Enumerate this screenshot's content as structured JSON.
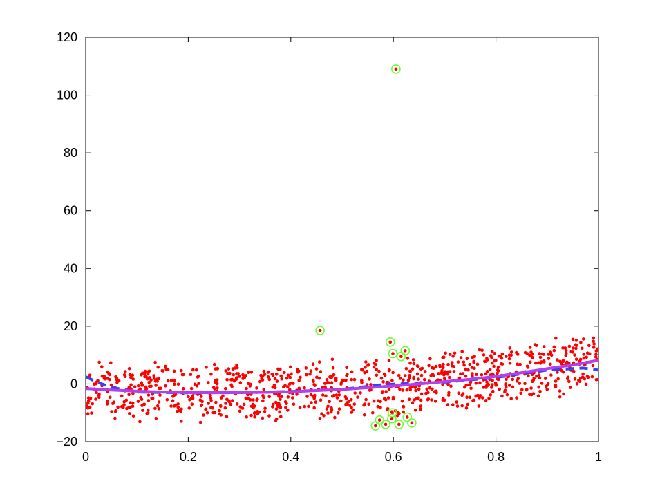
{
  "chart_data": {
    "type": "scatter",
    "title": "",
    "xlabel": "",
    "ylabel": "",
    "xlim": [
      0,
      1
    ],
    "ylim": [
      -20,
      120
    ],
    "grid": false,
    "x_ticks": [
      0,
      0.2,
      0.4,
      0.6,
      0.8,
      1
    ],
    "x_tick_labels": [
      "0",
      "0.2",
      "0.4",
      "0.6",
      "0.8",
      "1"
    ],
    "y_ticks": [
      -20,
      0,
      20,
      40,
      60,
      80,
      100,
      120
    ],
    "y_tick_labels": [
      "−20",
      "0",
      "20",
      "40",
      "60",
      "80",
      "100",
      "120"
    ],
    "colors": {
      "points": "#ff0000",
      "outlier_ring": "#66ff33",
      "fit_solid": "#b040f0",
      "fit_dashed": "#3344ee"
    },
    "scatter_cloud": {
      "count": 1000,
      "x_range": [
        0,
        1
      ],
      "trend_coefficients": [
        -1.6,
        -11.0,
        20.8
      ],
      "spread": 11
    },
    "outliers": [
      {
        "x": 0.605,
        "y": 109
      },
      {
        "x": 0.457,
        "y": 18.5
      },
      {
        "x": 0.594,
        "y": 14.5
      },
      {
        "x": 0.599,
        "y": 10.5
      },
      {
        "x": 0.623,
        "y": 11.5
      },
      {
        "x": 0.615,
        "y": 9.5
      },
      {
        "x": 0.565,
        "y": -14.5
      },
      {
        "x": 0.573,
        "y": -12.5
      },
      {
        "x": 0.585,
        "y": -14
      },
      {
        "x": 0.598,
        "y": -10
      },
      {
        "x": 0.597,
        "y": -12
      },
      {
        "x": 0.611,
        "y": -14
      },
      {
        "x": 0.627,
        "y": -11.5
      },
      {
        "x": 0.636,
        "y": -13.5
      }
    ],
    "series": [
      {
        "style": "solid",
        "x": [
          0,
          0.05,
          0.1,
          0.15,
          0.2,
          0.25,
          0.3,
          0.35,
          0.4,
          0.45,
          0.5,
          0.55,
          0.6,
          0.65,
          0.7,
          0.75,
          0.8,
          0.85,
          0.9,
          0.95,
          1
        ],
        "y": [
          -1.6,
          -2.1,
          -2.5,
          -2.8,
          -3.0,
          -3.0,
          -3.0,
          -2.9,
          -2.7,
          -2.3,
          -1.9,
          -1.3,
          -0.7,
          0.0,
          0.8,
          1.6,
          2.6,
          3.9,
          5.3,
          6.6,
          8.2
        ]
      },
      {
        "style": "dashed",
        "x": [
          0,
          0.02,
          0.05,
          0.1,
          0.2,
          0.3,
          0.4,
          0.5,
          0.58,
          0.7,
          0.8,
          0.9,
          0.97,
          1
        ],
        "y": [
          2.5,
          0.8,
          -1.2,
          -2.8,
          -3.1,
          -3.0,
          -2.6,
          -1.9,
          -0.2,
          0.6,
          2.2,
          4.8,
          5.5,
          4.8
        ]
      }
    ]
  }
}
